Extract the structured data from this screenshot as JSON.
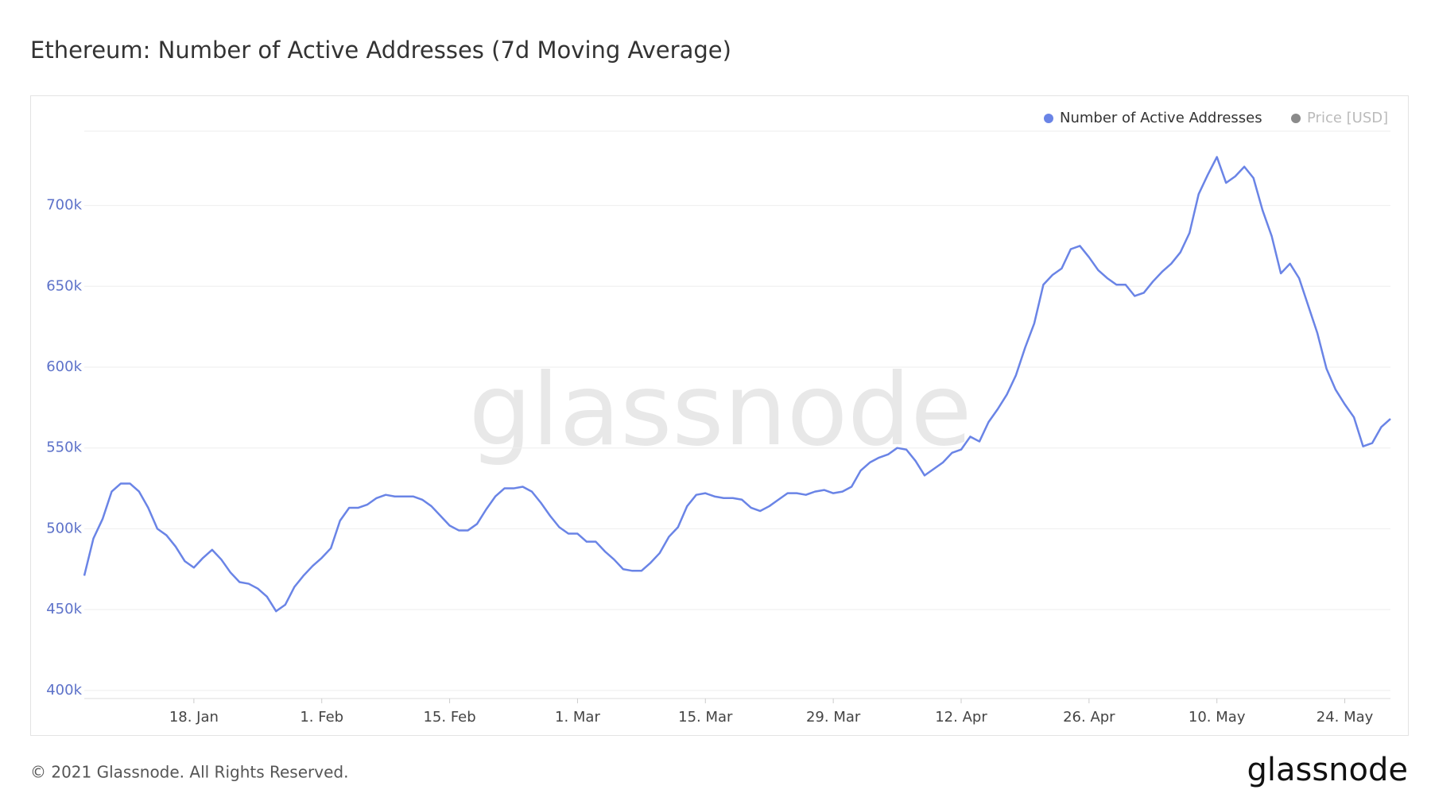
{
  "chart_data": {
    "type": "line",
    "title": "Ethereum: Number of Active Addresses (7d Moving Average)",
    "watermark": "glassnode",
    "footer": "© 2021 Glassnode. All Rights Reserved.",
    "logo": "glassnode",
    "x": [
      "01-06",
      "01-07",
      "01-08",
      "01-09",
      "01-10",
      "01-11",
      "01-12",
      "01-13",
      "01-14",
      "01-15",
      "01-16",
      "01-17",
      "01-18",
      "01-19",
      "01-20",
      "01-21",
      "01-22",
      "01-23",
      "01-24",
      "01-25",
      "01-26",
      "01-27",
      "01-28",
      "01-29",
      "01-30",
      "01-31",
      "02-01",
      "02-02",
      "02-03",
      "02-04",
      "02-05",
      "02-06",
      "02-07",
      "02-08",
      "02-09",
      "02-10",
      "02-11",
      "02-12",
      "02-13",
      "02-14",
      "02-15",
      "02-16",
      "02-17",
      "02-18",
      "02-19",
      "02-20",
      "02-21",
      "02-22",
      "02-23",
      "02-24",
      "02-25",
      "02-26",
      "02-27",
      "02-28",
      "03-01",
      "03-02",
      "03-03",
      "03-04",
      "03-05",
      "03-06",
      "03-07",
      "03-08",
      "03-09",
      "03-10",
      "03-11",
      "03-12",
      "03-13",
      "03-14",
      "03-15",
      "03-16",
      "03-17",
      "03-18",
      "03-19",
      "03-20",
      "03-21",
      "03-22",
      "03-23",
      "03-24",
      "03-25",
      "03-26",
      "03-27",
      "03-28",
      "03-29",
      "03-30",
      "03-31",
      "04-01",
      "04-02",
      "04-03",
      "04-04",
      "04-05",
      "04-06",
      "04-07",
      "04-08",
      "04-09",
      "04-10",
      "04-11",
      "04-12",
      "04-13",
      "04-14",
      "04-15",
      "04-16",
      "04-17",
      "04-18",
      "04-19",
      "04-20",
      "04-21",
      "04-22",
      "04-23",
      "04-24",
      "04-25",
      "04-26",
      "04-27",
      "04-28",
      "04-29",
      "04-30",
      "05-01",
      "05-02",
      "05-03",
      "05-04",
      "05-05",
      "05-06",
      "05-07",
      "05-08",
      "05-09",
      "05-10",
      "05-11",
      "05-12",
      "05-13",
      "05-14",
      "05-15",
      "05-16",
      "05-17",
      "05-18",
      "05-19",
      "05-20",
      "05-21",
      "05-22",
      "05-23",
      "05-24",
      "05-25",
      "05-26",
      "05-27",
      "05-28",
      "05-29"
    ],
    "series": [
      {
        "name": "Number of Active Addresses",
        "color": "#6a84e6",
        "values": [
          471000,
          494000,
          506000,
          523000,
          528000,
          528000,
          523000,
          513000,
          500000,
          496000,
          489000,
          480000,
          476000,
          482000,
          487000,
          481000,
          473000,
          467000,
          466000,
          463000,
          458000,
          449000,
          453000,
          464000,
          471000,
          477000,
          482000,
          488000,
          505000,
          513000,
          513000,
          515000,
          519000,
          521000,
          520000,
          520000,
          520000,
          518000,
          514000,
          508000,
          502000,
          499000,
          499000,
          503000,
          512000,
          520000,
          525000,
          525000,
          526000,
          523000,
          516000,
          508000,
          501000,
          497000,
          497000,
          492000,
          492000,
          486000,
          481000,
          475000,
          474000,
          474000,
          479000,
          485000,
          495000,
          501000,
          514000,
          521000,
          522000,
          520000,
          519000,
          519000,
          518000,
          513000,
          511000,
          514000,
          518000,
          522000,
          522000,
          521000,
          523000,
          524000,
          522000,
          523000,
          526000,
          536000,
          541000,
          544000,
          546000,
          550000,
          549000,
          542000,
          533000,
          537000,
          541000,
          547000,
          549000,
          557000,
          554000,
          566000,
          574000,
          583000,
          595000,
          612000,
          627000,
          651000,
          657000,
          661000,
          673000,
          675000,
          668000,
          660000,
          655000,
          651000,
          651000,
          644000,
          646000,
          653000,
          659000,
          664000,
          671000,
          683000,
          707000,
          719000,
          730000,
          714000,
          718000,
          724000,
          717000,
          697000,
          681000,
          658000,
          664000,
          655000,
          638000,
          621000,
          599000,
          586000,
          577000,
          569000,
          551000,
          553000,
          563000,
          568000
        ]
      }
    ],
    "inactive_series": [
      {
        "name": "Price [USD]",
        "color": "#8a8a8a"
      }
    ],
    "ylim": [
      395000,
      746000
    ],
    "yticks": [
      {
        "value": 400000,
        "label": "400k"
      },
      {
        "value": 450000,
        "label": "450k"
      },
      {
        "value": 500000,
        "label": "500k"
      },
      {
        "value": 550000,
        "label": "550k"
      },
      {
        "value": 600000,
        "label": "600k"
      },
      {
        "value": 650000,
        "label": "650k"
      },
      {
        "value": 700000,
        "label": "700k"
      }
    ],
    "xticks": [
      {
        "value": "01-18",
        "label": "18. Jan"
      },
      {
        "value": "02-01",
        "label": "1. Feb"
      },
      {
        "value": "02-15",
        "label": "15. Feb"
      },
      {
        "value": "03-01",
        "label": "1. Mar"
      },
      {
        "value": "03-15",
        "label": "15. Mar"
      },
      {
        "value": "03-29",
        "label": "29. Mar"
      },
      {
        "value": "04-12",
        "label": "12. Apr"
      },
      {
        "value": "04-26",
        "label": "26. Apr"
      },
      {
        "value": "05-10",
        "label": "10. May"
      },
      {
        "value": "05-24",
        "label": "24. May"
      }
    ],
    "grid": true,
    "legend": "top-right"
  }
}
